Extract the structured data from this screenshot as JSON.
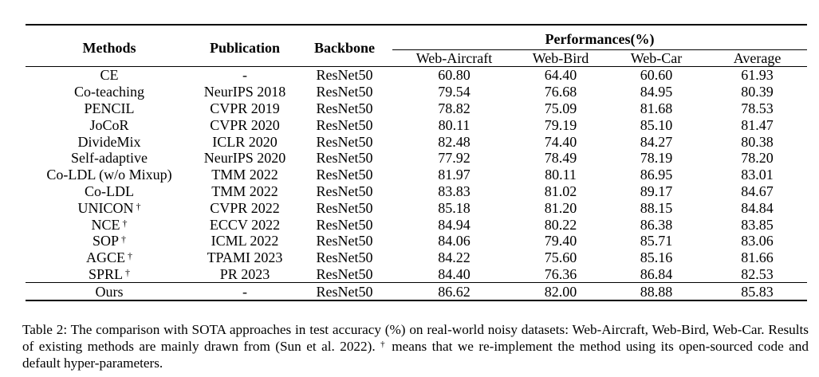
{
  "table": {
    "headers": {
      "methods": "Methods",
      "publication": "Publication",
      "backbone": "Backbone",
      "performances": "Performances(%)",
      "web_aircraft": "Web-Aircraft",
      "web_bird": "Web-Bird",
      "web_car": "Web-Car",
      "average": "Average"
    },
    "dagger": "†",
    "rows": [
      {
        "method": "CE",
        "dagger": false,
        "publication": "-",
        "backbone": "ResNet50",
        "aircraft": "60.80",
        "bird": "64.40",
        "car": "60.60",
        "average": "61.93"
      },
      {
        "method": "Co-teaching",
        "dagger": false,
        "publication": "NeurIPS 2018",
        "backbone": "ResNet50",
        "aircraft": "79.54",
        "bird": "76.68",
        "car": "84.95",
        "average": "80.39"
      },
      {
        "method": "PENCIL",
        "dagger": false,
        "publication": "CVPR 2019",
        "backbone": "ResNet50",
        "aircraft": "78.82",
        "bird": "75.09",
        "car": "81.68",
        "average": "78.53"
      },
      {
        "method": "JoCoR",
        "dagger": false,
        "publication": "CVPR 2020",
        "backbone": "ResNet50",
        "aircraft": "80.11",
        "bird": "79.19",
        "car": "85.10",
        "average": "81.47"
      },
      {
        "method": "DivideMix",
        "dagger": false,
        "publication": "ICLR 2020",
        "backbone": "ResNet50",
        "aircraft": "82.48",
        "bird": "74.40",
        "car": "84.27",
        "average": "80.38"
      },
      {
        "method": "Self-adaptive",
        "dagger": false,
        "publication": "NeurIPS 2020",
        "backbone": "ResNet50",
        "aircraft": "77.92",
        "bird": "78.49",
        "car": "78.19",
        "average": "78.20"
      },
      {
        "method": "Co-LDL (w/o Mixup)",
        "dagger": false,
        "publication": "TMM 2022",
        "backbone": "ResNet50",
        "aircraft": "81.97",
        "bird": "80.11",
        "car": "86.95",
        "average": "83.01"
      },
      {
        "method": "Co-LDL",
        "dagger": false,
        "publication": "TMM 2022",
        "backbone": "ResNet50",
        "aircraft": "83.83",
        "bird": "81.02",
        "car": "89.17",
        "average": "84.67"
      },
      {
        "method": "UNICON",
        "dagger": true,
        "publication": "CVPR 2022",
        "backbone": "ResNet50",
        "aircraft": "85.18",
        "bird": "81.20",
        "car": "88.15",
        "average": "84.84"
      },
      {
        "method": "NCE",
        "dagger": true,
        "publication": "ECCV 2022",
        "backbone": "ResNet50",
        "aircraft": "84.94",
        "bird": "80.22",
        "car": "86.38",
        "average": "83.85"
      },
      {
        "method": "SOP",
        "dagger": true,
        "publication": "ICML 2022",
        "backbone": "ResNet50",
        "aircraft": "84.06",
        "bird": "79.40",
        "car": "85.71",
        "average": "83.06"
      },
      {
        "method": "AGCE",
        "dagger": true,
        "publication": "TPAMI 2023",
        "backbone": "ResNet50",
        "aircraft": "84.22",
        "bird": "75.60",
        "car": "85.16",
        "average": "81.66"
      },
      {
        "method": "SPRL",
        "dagger": true,
        "publication": "PR 2023",
        "backbone": "ResNet50",
        "aircraft": "84.40",
        "bird": "76.36",
        "car": "86.84",
        "average": "82.53"
      }
    ],
    "ours": {
      "method": "Ours",
      "publication": "-",
      "backbone": "ResNet50",
      "aircraft": "86.62",
      "bird": "82.00",
      "car": "88.88",
      "average": "85.83"
    },
    "bold_cells": [
      {
        "row": "Co-LDL",
        "column": "car"
      },
      {
        "row": "Ours",
        "column": "aircraft"
      },
      {
        "row": "Ours",
        "column": "bird"
      },
      {
        "row": "Ours",
        "column": "average"
      }
    ]
  },
  "caption": {
    "part1": "Table 2: The comparison with SOTA approaches in test accuracy (%) on real-world noisy datasets: Web-Aircraft, Web-Bird, Web-Car. Results of existing methods are mainly drawn from (Sun et al. 2022).",
    "dagger": "†",
    "part2": " means that we re-implement the method using its open-sourced code and default hyper-parameters."
  }
}
